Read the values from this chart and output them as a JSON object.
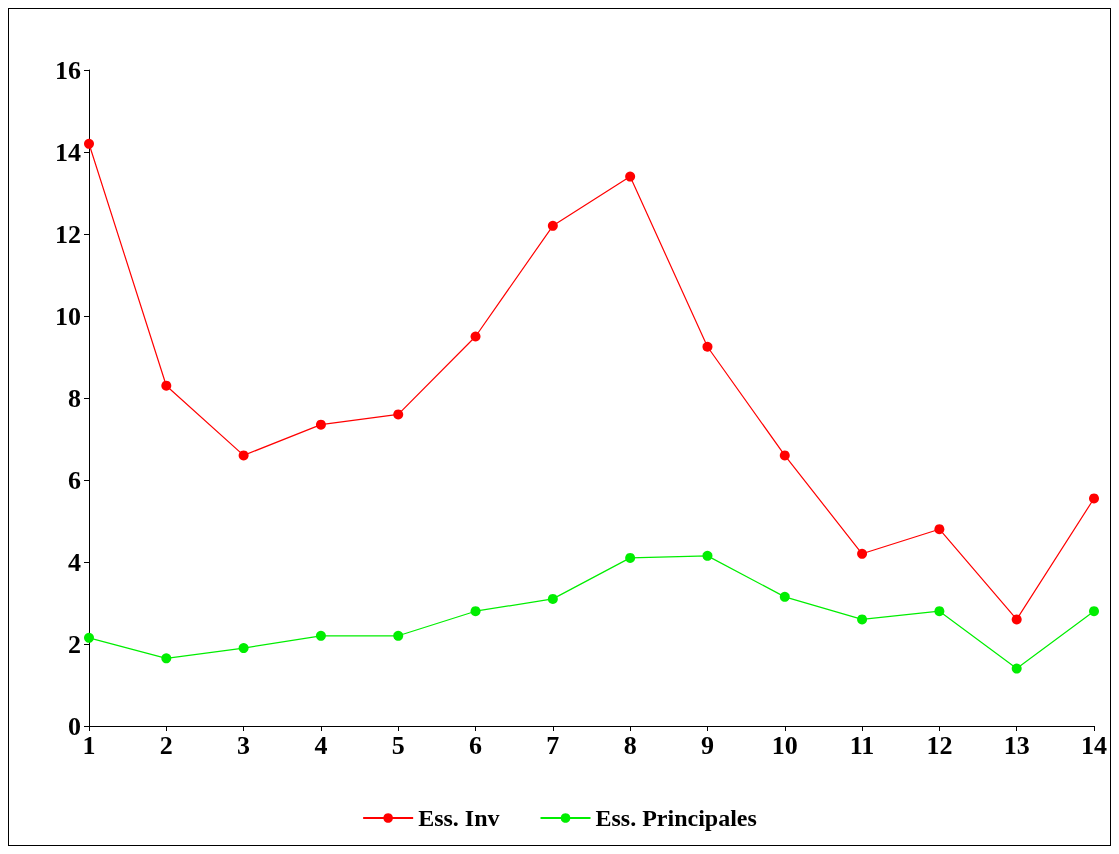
{
  "chart_data": {
    "type": "line",
    "x": [
      1,
      2,
      3,
      4,
      5,
      6,
      7,
      8,
      9,
      10,
      11,
      12,
      13,
      14
    ],
    "xlim": [
      1,
      14
    ],
    "xticks": [
      1,
      2,
      3,
      4,
      5,
      6,
      7,
      8,
      9,
      10,
      11,
      12,
      13,
      14
    ],
    "ylim": [
      0,
      16
    ],
    "yticks": [
      0,
      2,
      4,
      6,
      8,
      10,
      12,
      14,
      16
    ],
    "grid": false,
    "legend": "bottom",
    "marker": "circle",
    "line_style": "solid",
    "series": [
      {
        "name": "Ess. Inv",
        "color": "#ff0000",
        "values": [
          14.2,
          8.3,
          6.6,
          7.35,
          7.6,
          9.5,
          12.2,
          13.4,
          9.25,
          6.6,
          4.2,
          4.8,
          2.6,
          5.55
        ]
      },
      {
        "name": "Ess. Principales",
        "color": "#00ee00",
        "values": [
          2.15,
          1.65,
          1.9,
          2.2,
          2.2,
          2.8,
          3.1,
          4.1,
          4.15,
          3.15,
          2.6,
          2.8,
          1.4,
          2.8
        ]
      }
    ]
  }
}
